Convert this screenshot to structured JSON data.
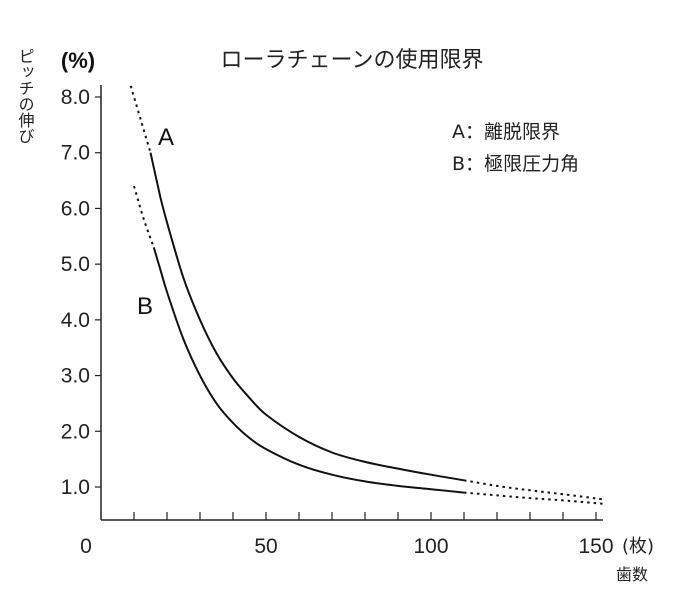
{
  "chart_data": {
    "type": "line",
    "title": "ローラチェーンの使用限界",
    "ylabel": "ピッチの伸び",
    "yunit": "(%)",
    "xlabel": "歯数",
    "xunit": "(枚)",
    "xlim": [
      0,
      150
    ],
    "ylim": [
      0.7,
      8.2
    ],
    "x_ticks": [
      0,
      50,
      100,
      150
    ],
    "x_tick_labels": [
      "0",
      "50",
      "100",
      "150"
    ],
    "x_minor_ticks": [
      10,
      20,
      30,
      40,
      50,
      60,
      70,
      80,
      90,
      100,
      110,
      120,
      130,
      140,
      150
    ],
    "y_ticks": [
      1.0,
      2.0,
      3.0,
      4.0,
      5.0,
      6.0,
      7.0,
      8.0
    ],
    "y_tick_labels": [
      "1.0",
      "2.0",
      "3.0",
      "4.0",
      "5.0",
      "6.0",
      "7.0",
      "8.0"
    ],
    "grid": false,
    "legend": [
      {
        "key": "A",
        "sep": "：",
        "text": "離脱限界"
      },
      {
        "key": "B",
        "sep": "：",
        "text": "極限圧力角"
      }
    ],
    "series": [
      {
        "name": "A",
        "solid_range": [
          15,
          110
        ],
        "dotted_ranges": [
          [
            9,
            15
          ],
          [
            110,
            152
          ]
        ],
        "x": [
          9,
          12,
          15,
          18,
          20,
          25,
          30,
          35,
          40,
          45,
          50,
          60,
          70,
          80,
          90,
          100,
          110,
          120,
          130,
          140,
          152
        ],
        "y": [
          8.2,
          7.6,
          7.0,
          6.2,
          5.75,
          4.75,
          4.0,
          3.4,
          2.95,
          2.6,
          2.3,
          1.9,
          1.62,
          1.45,
          1.33,
          1.22,
          1.12,
          1.02,
          0.94,
          0.87,
          0.78
        ]
      },
      {
        "name": "B",
        "solid_range": [
          16,
          110
        ],
        "dotted_ranges": [
          [
            10,
            16
          ],
          [
            110,
            152
          ]
        ],
        "x": [
          10,
          13,
          16,
          18,
          20,
          25,
          30,
          35,
          40,
          45,
          50,
          60,
          70,
          80,
          90,
          100,
          110,
          120,
          130,
          140,
          152
        ],
        "y": [
          6.4,
          5.8,
          5.3,
          4.9,
          4.5,
          3.65,
          3.0,
          2.5,
          2.15,
          1.88,
          1.68,
          1.4,
          1.22,
          1.1,
          1.02,
          0.96,
          0.9,
          0.85,
          0.8,
          0.76,
          0.7
        ]
      }
    ],
    "annotations": [
      "A",
      "B"
    ]
  }
}
